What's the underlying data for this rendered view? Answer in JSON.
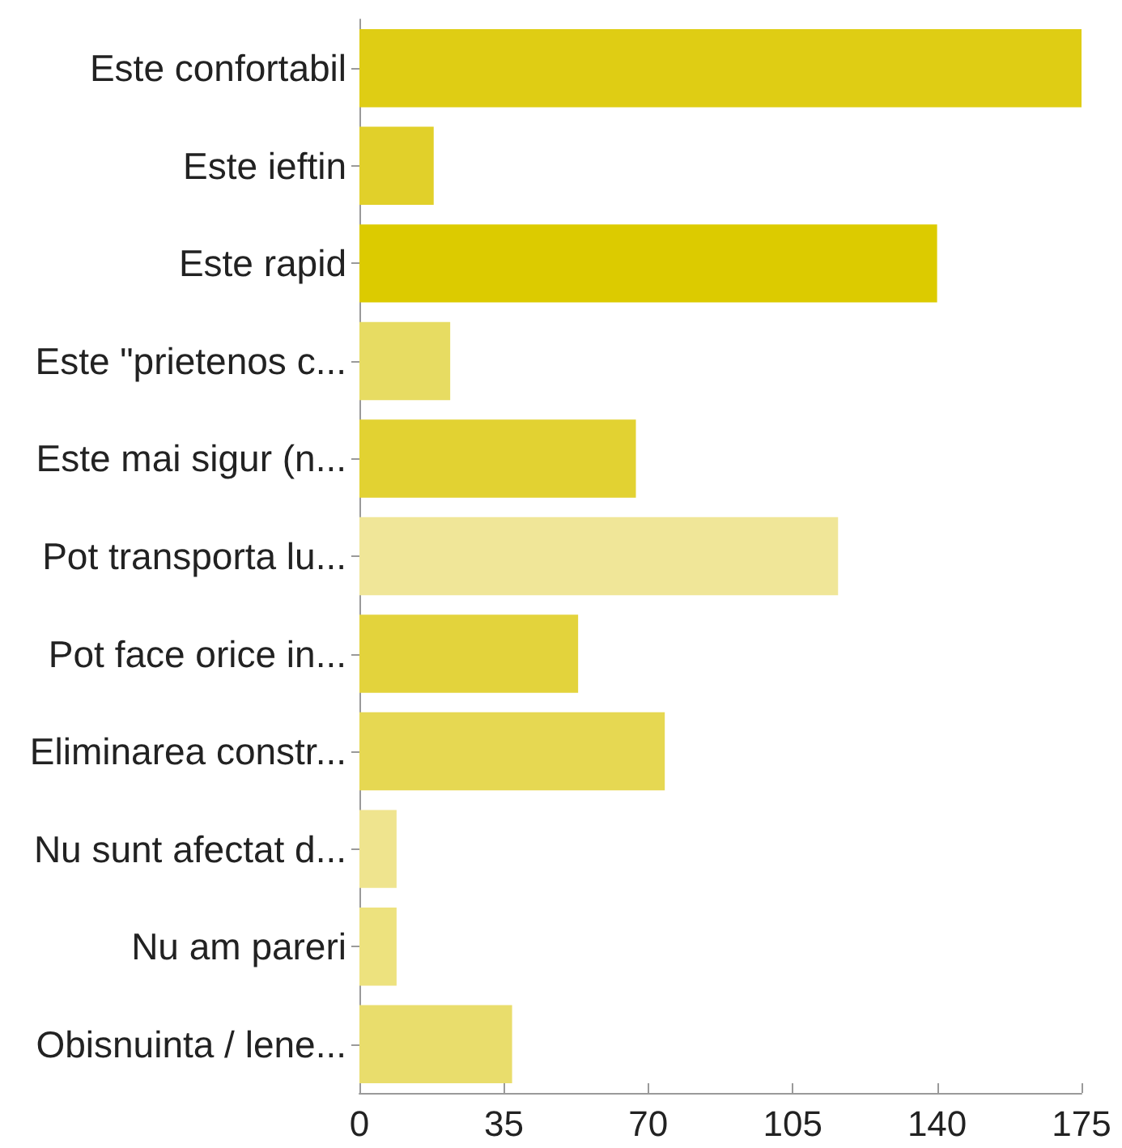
{
  "chart_data": {
    "type": "bar",
    "orientation": "horizontal",
    "categories": [
      "Este confortabil",
      "Este ieftin",
      "Este rapid",
      "Este \"prietenos c...",
      "Este mai sigur (n...",
      "Pot transporta lu...",
      "Pot face orice in...",
      "Eliminarea constr...",
      "Nu sunt afectat d...",
      "Nu am pareri",
      "Obisnuinta / lene..."
    ],
    "values": [
      175,
      18,
      140,
      22,
      67,
      116,
      53,
      74,
      9,
      9,
      37
    ],
    "colors": [
      "#dfcd14",
      "#e1d02a",
      "#dccb00",
      "#e7dc62",
      "#e2d232",
      "#f0e698",
      "#e3d33c",
      "#e6d852",
      "#efe48e",
      "#ede27e",
      "#e9dd6c"
    ],
    "xlim": [
      0,
      175
    ],
    "xticks": [
      0,
      35,
      70,
      105,
      140,
      175
    ],
    "grid": false
  }
}
